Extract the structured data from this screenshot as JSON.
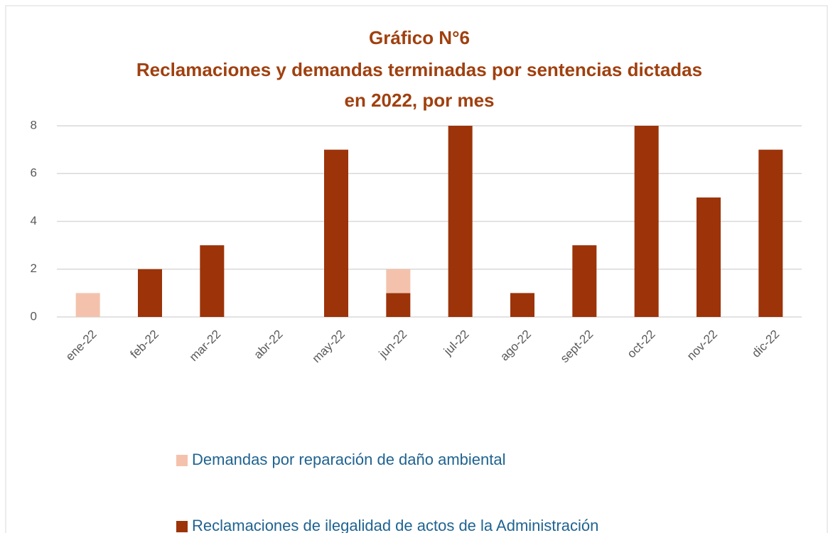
{
  "chart_data": {
    "type": "stacked_bar",
    "title": [
      "Gráfico N°6",
      "Reclamaciones y demandas terminadas por sentencias dictadas",
      "en 2022, por mes"
    ],
    "categories": [
      "ene-22",
      "feb-22",
      "mar-22",
      "abr-22",
      "may-22",
      "jun-22",
      "jul-22",
      "ago-22",
      "sept-22",
      "oct-22",
      "nov-22",
      "dic-22"
    ],
    "series": [
      {
        "name": "Reclamaciones de ilegalidad de actos de la Administración",
        "color": "#9c3309",
        "values": [
          0,
          2,
          3,
          0,
          7,
          1,
          8,
          1,
          3,
          8,
          5,
          7
        ]
      },
      {
        "name": "Demandas por reparación de daño ambiental",
        "color": "#f4c2ac",
        "values": [
          1,
          0,
          0,
          0,
          0,
          1,
          0,
          0,
          0,
          0,
          0,
          0
        ]
      }
    ],
    "ylim": [
      0,
      8
    ],
    "yticks": [
      0,
      2,
      4,
      6,
      8
    ],
    "grid": true
  }
}
